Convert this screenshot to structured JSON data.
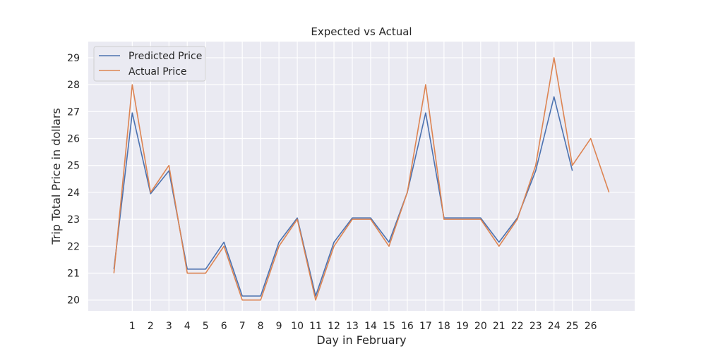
{
  "chart_data": {
    "type": "line",
    "title": "Expected vs Actual",
    "xlabel": "Day in February",
    "ylabel": "Trip Total Price in dollars",
    "x_ticks": [
      1,
      2,
      3,
      4,
      5,
      6,
      7,
      8,
      9,
      10,
      11,
      12,
      13,
      14,
      15,
      16,
      17,
      18,
      19,
      20,
      21,
      22,
      23,
      24,
      25,
      26
    ],
    "y_ticks": [
      20,
      21,
      22,
      23,
      24,
      25,
      26,
      27,
      28,
      29
    ],
    "xlim": [
      -1.4,
      28.4
    ],
    "ylim": [
      19.6,
      29.6
    ],
    "grid": true,
    "legend_position": "top-left",
    "series": [
      {
        "name": "Predicted Price",
        "color": "#4c72b0",
        "x": [
          0,
          1,
          2,
          3,
          4,
          5,
          6,
          7,
          8,
          9,
          10,
          11,
          12,
          13,
          14,
          15,
          16,
          17,
          18,
          19,
          20,
          21,
          22,
          23,
          24,
          25
        ],
        "values": [
          21.15,
          26.95,
          23.95,
          24.8,
          21.15,
          21.15,
          22.15,
          20.15,
          20.15,
          22.15,
          23.05,
          20.15,
          22.15,
          23.05,
          23.05,
          22.15,
          24.0,
          26.95,
          23.05,
          23.05,
          23.05,
          22.15,
          23.05,
          24.8,
          27.55,
          24.8
        ]
      },
      {
        "name": "Actual Price",
        "color": "#dd8452",
        "x": [
          0,
          1,
          2,
          3,
          4,
          5,
          6,
          7,
          8,
          9,
          10,
          11,
          12,
          13,
          14,
          15,
          16,
          17,
          18,
          19,
          20,
          21,
          22,
          23,
          24,
          25,
          26,
          27
        ],
        "values": [
          21,
          28,
          24,
          25,
          21,
          21,
          22,
          20,
          20,
          22,
          23,
          20,
          22,
          23,
          23,
          22,
          24,
          28,
          23,
          23,
          23,
          22,
          23,
          25,
          29,
          25,
          26,
          24
        ]
      }
    ]
  }
}
